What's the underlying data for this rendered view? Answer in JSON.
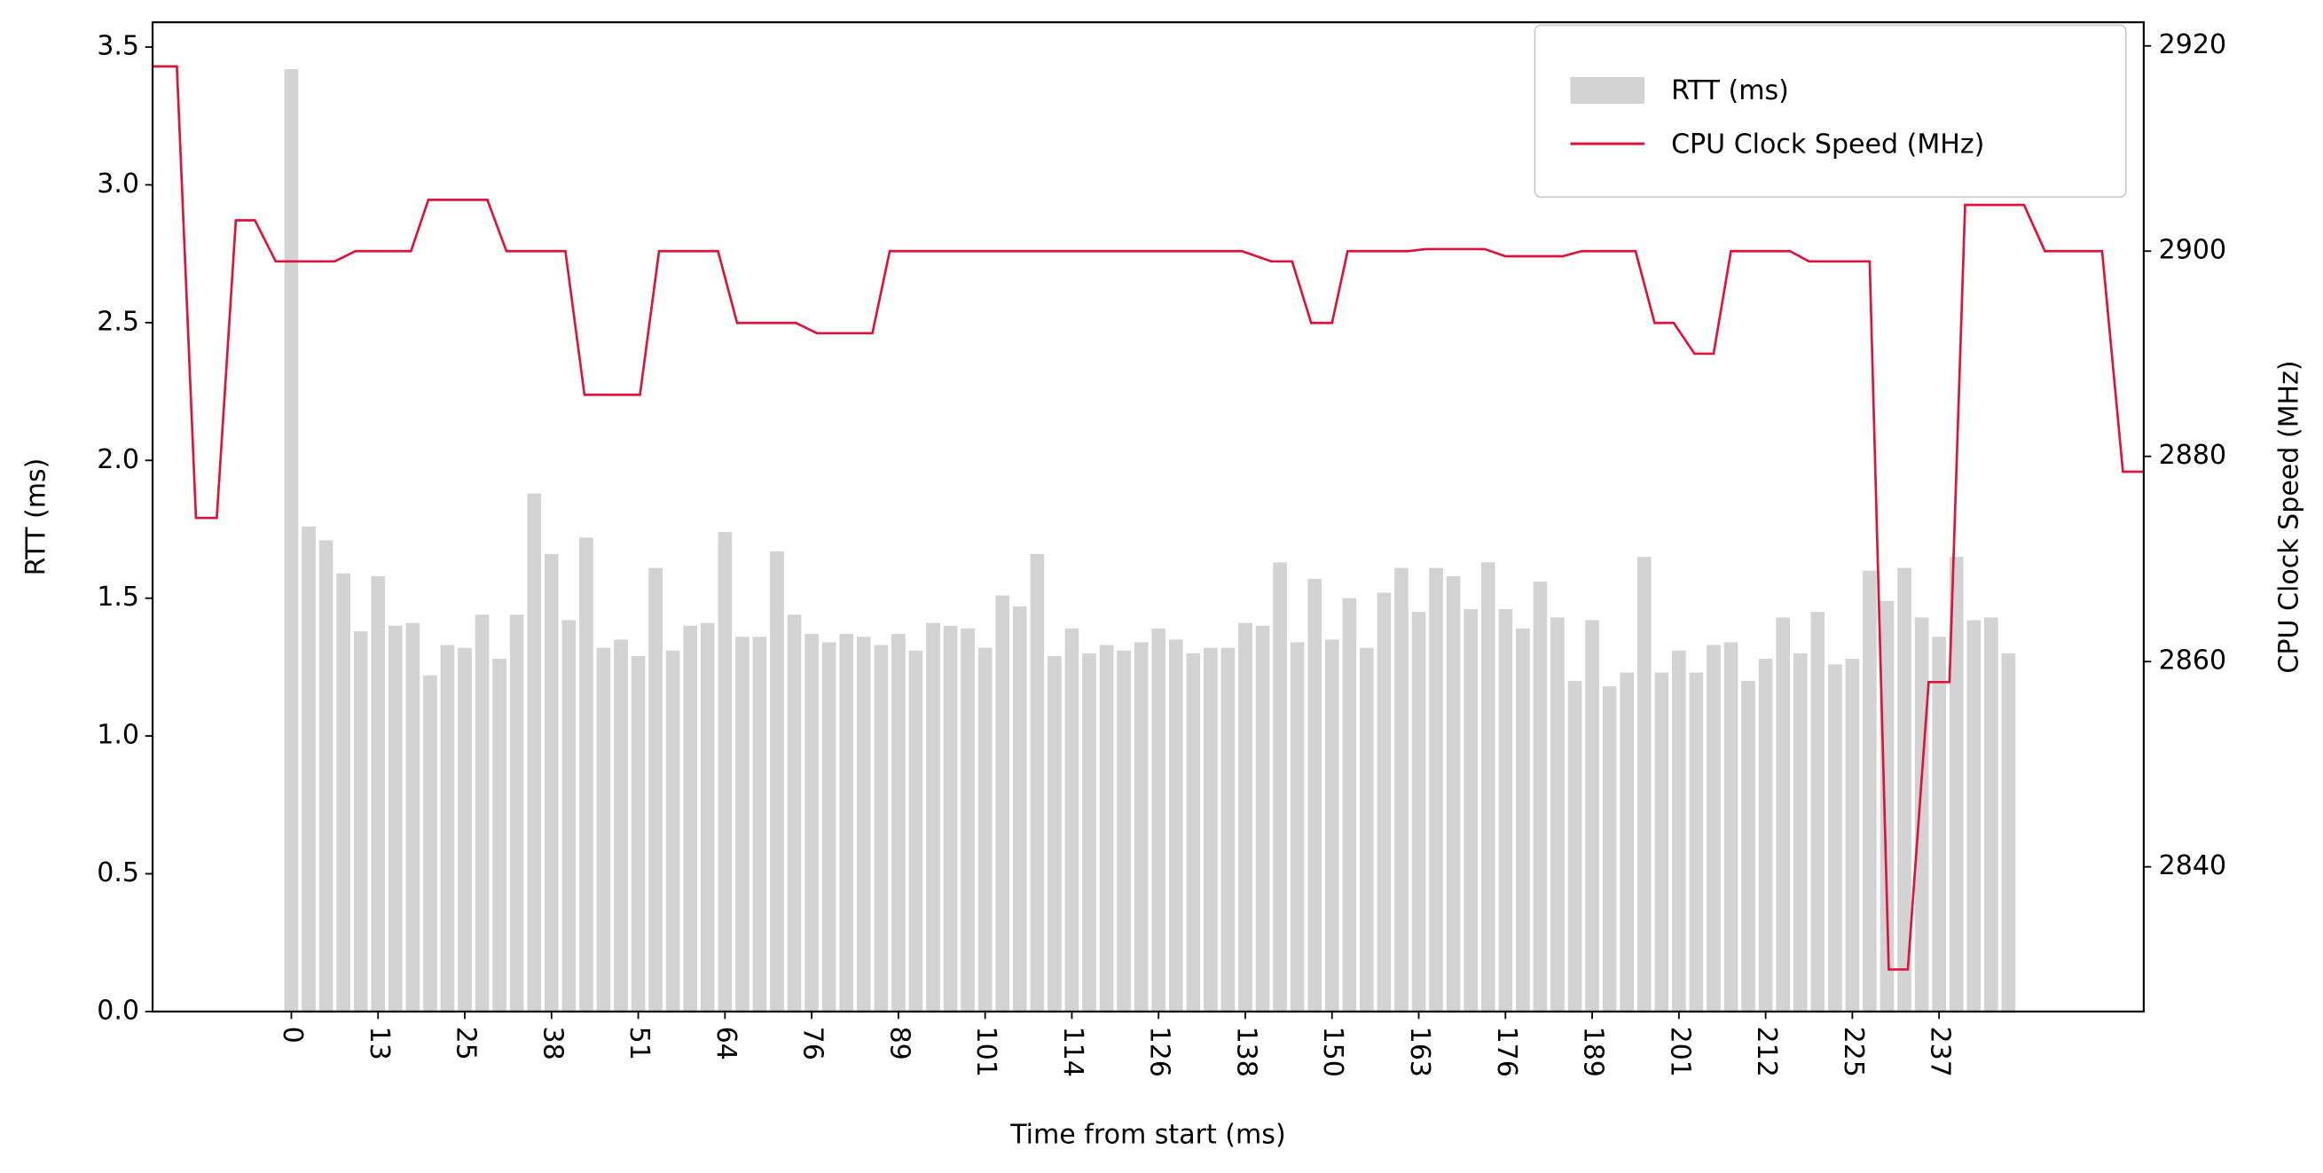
{
  "chart_data": {
    "type": "combo",
    "xlabel": "Time from start (ms)",
    "ylabel": "RTT (ms)",
    "y2label": "CPU Clock Speed (MHz)",
    "categories": [
      "0",
      null,
      null,
      null,
      null,
      "13",
      null,
      null,
      null,
      null,
      "25",
      null,
      null,
      null,
      null,
      "38",
      null,
      null,
      null,
      null,
      "51",
      null,
      null,
      null,
      null,
      "64",
      null,
      null,
      null,
      null,
      "76",
      null,
      null,
      null,
      null,
      "89",
      null,
      null,
      null,
      null,
      "101",
      null,
      null,
      null,
      null,
      "114",
      null,
      null,
      null,
      null,
      "126",
      null,
      null,
      null,
      null,
      "138",
      null,
      null,
      null,
      null,
      "150",
      null,
      null,
      null,
      null,
      "163",
      null,
      null,
      null,
      null,
      "176",
      null,
      null,
      null,
      null,
      "189",
      null,
      null,
      null,
      null,
      "201",
      null,
      null,
      null,
      null,
      "212",
      null,
      null,
      null,
      null,
      "225",
      null,
      null,
      null,
      null,
      "237",
      null,
      null,
      null,
      null
    ],
    "xlim": [
      -8.0,
      106.8
    ],
    "ylim": [
      0,
      3.59
    ],
    "yticks": [
      {
        "value": 0,
        "label": "0.0"
      },
      0.5,
      {
        "value": 1,
        "label": "1.0"
      },
      1.5,
      {
        "value": 2,
        "label": "2.0"
      },
      2.5,
      {
        "value": 3,
        "label": "3.0"
      },
      3.5
    ],
    "y2lim": [
      2825.9,
      2922.3
    ],
    "y2ticks": [
      2840,
      2860,
      2880,
      2900,
      2920
    ],
    "legend": "upper right",
    "series": [
      {
        "name": "RTT (ms)",
        "type": "bar",
        "color": "#d3d3d3",
        "values": [
          3.42,
          1.76,
          1.71,
          1.59,
          1.38,
          1.58,
          1.4,
          1.41,
          1.22,
          1.33,
          1.32,
          1.44,
          1.28,
          1.44,
          1.88,
          1.66,
          1.42,
          1.72,
          1.32,
          1.35,
          1.29,
          1.61,
          1.31,
          1.4,
          1.41,
          1.74,
          1.36,
          1.36,
          1.67,
          1.44,
          1.37,
          1.34,
          1.37,
          1.36,
          1.33,
          1.37,
          1.31,
          1.41,
          1.4,
          1.39,
          1.32,
          1.51,
          1.47,
          1.66,
          1.29,
          1.39,
          1.3,
          1.33,
          1.31,
          1.34,
          1.39,
          1.35,
          1.3,
          1.32,
          1.32,
          1.41,
          1.4,
          1.63,
          1.34,
          1.57,
          1.35,
          1.5,
          1.32,
          1.52,
          1.61,
          1.45,
          1.61,
          1.58,
          1.46,
          1.63,
          1.46,
          1.39,
          1.56,
          1.43,
          1.2,
          1.42,
          1.18,
          1.23,
          1.65,
          1.23,
          1.31,
          1.23,
          1.33,
          1.34,
          1.2,
          1.28,
          1.43,
          1.3,
          1.45,
          1.26,
          1.28,
          1.6,
          1.49,
          1.61,
          1.43,
          1.36,
          1.65,
          1.42,
          1.43,
          1.3
        ]
      },
      {
        "name": "CPU Clock Speed (MHz)",
        "type": "line",
        "axis": "y2",
        "color": "#dc143c",
        "x": [
          -8.0,
          -6.6,
          -5.5,
          -4.3,
          -3.2,
          -2.1,
          -0.9,
          2.5,
          3.7,
          6.9,
          7.9,
          11.3,
          12.4,
          15.8,
          16.9,
          20.1,
          21.2,
          24.6,
          25.7,
          29.1,
          30.3,
          33.5,
          34.5,
          54.8,
          56.5,
          57.7,
          58.8,
          60.0,
          60.9,
          64.4,
          65.4,
          68.8,
          70.0,
          73.3,
          74.4,
          77.5,
          78.6,
          79.7,
          80.9,
          82.0,
          83.0,
          86.4,
          87.5,
          91.0,
          92.1,
          93.2,
          94.4,
          95.6,
          96.5,
          99.9,
          101.1,
          104.4,
          105.6,
          106.8
        ],
        "values": [
          2918,
          2918,
          2874,
          2874,
          2903,
          2903,
          2899,
          2899,
          2900,
          2900,
          2905,
          2905,
          2900,
          2900,
          2886,
          2886,
          2900,
          2900,
          2893,
          2893,
          2892,
          2892,
          2900,
          2900,
          2899,
          2899,
          2893,
          2893,
          2900,
          2900,
          2900.2,
          2900.2,
          2899.5,
          2899.5,
          2900,
          2900,
          2893,
          2893,
          2890,
          2890,
          2900,
          2900,
          2899,
          2899,
          2830,
          2830,
          2858,
          2858,
          2904.5,
          2904.5,
          2900,
          2900,
          2878.5,
          2878.5
        ]
      }
    ]
  }
}
